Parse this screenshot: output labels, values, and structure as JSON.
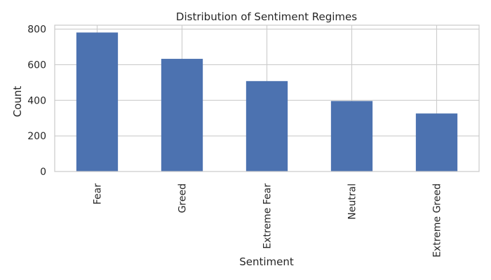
{
  "chart_data": {
    "type": "bar",
    "title": "Distribution of Sentiment Regimes",
    "xlabel": "Sentiment",
    "ylabel": "Count",
    "categories": [
      "Fear",
      "Greed",
      "Extreme Fear",
      "Neutral",
      "Extreme Greed"
    ],
    "values": [
      781,
      633,
      508,
      396,
      326
    ],
    "ylim": [
      0,
      822
    ],
    "yticks": [
      0,
      200,
      400,
      600,
      800
    ],
    "grid": true,
    "bar_color": "#4c72b0",
    "grid_color": "#cccccc",
    "text_color": "#262626"
  }
}
